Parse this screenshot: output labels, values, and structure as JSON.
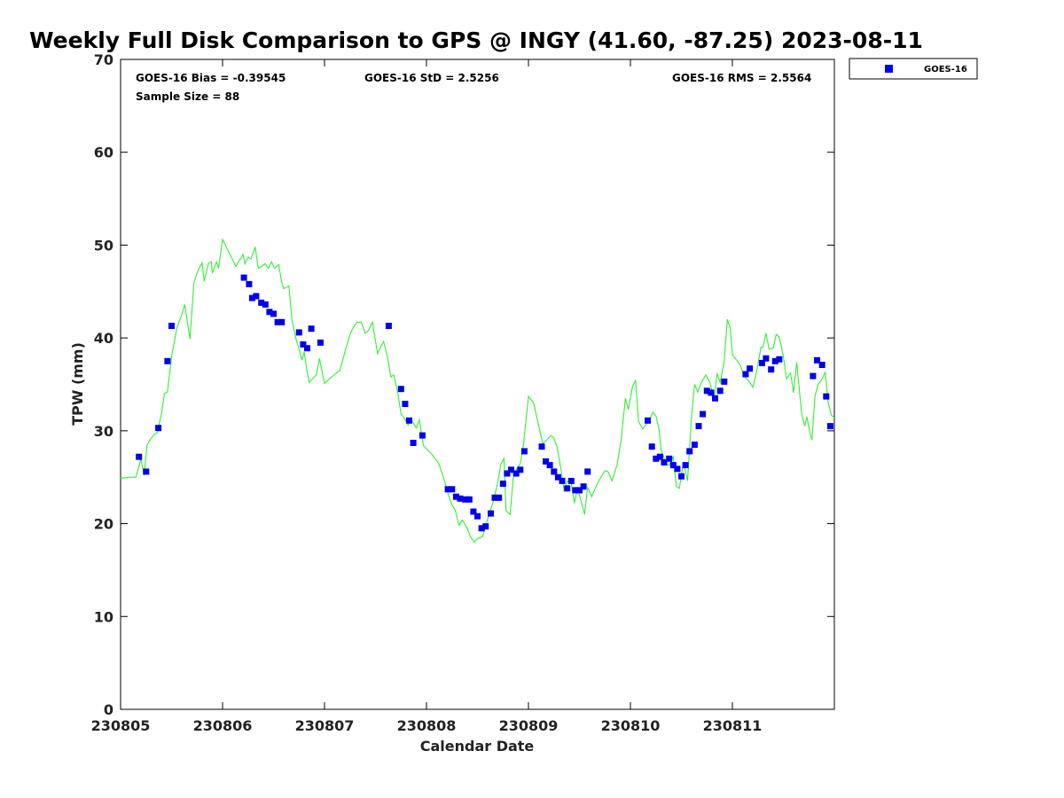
{
  "chart_data": {
    "type": "scatter",
    "title": "Weekly Full Disk Comparison to GPS @ INGY (41.60, -87.25) 2023-08-11",
    "xlabel": "Calendar Date",
    "ylabel": "TPW (mm)",
    "x_ticks": [
      "230805",
      "230806",
      "230807",
      "230808",
      "230809",
      "230810",
      "230811"
    ],
    "xlim_days": [
      0,
      7
    ],
    "ylim": [
      0,
      70
    ],
    "y_ticks": [
      0,
      10,
      20,
      30,
      40,
      50,
      60,
      70
    ],
    "grid": false,
    "legend": {
      "position": "outside-top-right",
      "entries": [
        "GOES-16"
      ]
    },
    "stats": {
      "bias": "GOES-16 Bias = -0.39545",
      "std": "GOES-16 StD = 2.5256",
      "rms": "GOES-16 RMS = 2.5564",
      "sample": "Sample Size = 88"
    },
    "colors": {
      "goes": "#0000ee",
      "gps": "#33ee33"
    },
    "series": [
      {
        "name": "GOES-16",
        "kind": "markers",
        "points": [
          [
            0.18,
            27.2
          ],
          [
            0.25,
            25.6
          ],
          [
            0.37,
            30.3
          ],
          [
            0.46,
            37.5
          ],
          [
            0.5,
            41.3
          ],
          [
            1.21,
            46.5
          ],
          [
            1.26,
            45.8
          ],
          [
            1.29,
            44.3
          ],
          [
            1.33,
            44.5
          ],
          [
            1.38,
            43.8
          ],
          [
            1.42,
            43.6
          ],
          [
            1.46,
            42.8
          ],
          [
            1.5,
            42.6
          ],
          [
            1.54,
            41.7
          ],
          [
            1.58,
            41.7
          ],
          [
            1.75,
            40.6
          ],
          [
            1.79,
            39.3
          ],
          [
            1.83,
            38.9
          ],
          [
            1.87,
            41.0
          ],
          [
            1.96,
            39.5
          ],
          [
            2.63,
            41.3
          ],
          [
            2.75,
            34.5
          ],
          [
            2.79,
            32.9
          ],
          [
            2.83,
            31.1
          ],
          [
            2.87,
            28.7
          ],
          [
            2.96,
            29.5
          ],
          [
            3.21,
            23.7
          ],
          [
            3.25,
            23.7
          ],
          [
            3.29,
            22.9
          ],
          [
            3.33,
            22.7
          ],
          [
            3.38,
            22.6
          ],
          [
            3.42,
            22.6
          ],
          [
            3.46,
            21.3
          ],
          [
            3.5,
            20.8
          ],
          [
            3.54,
            19.5
          ],
          [
            3.58,
            19.7
          ],
          [
            3.63,
            21.1
          ],
          [
            3.67,
            22.8
          ],
          [
            3.71,
            22.8
          ],
          [
            3.75,
            24.3
          ],
          [
            3.79,
            25.4
          ],
          [
            3.83,
            25.8
          ],
          [
            3.88,
            25.4
          ],
          [
            3.92,
            25.8
          ],
          [
            3.96,
            27.8
          ],
          [
            4.13,
            28.3
          ],
          [
            4.17,
            26.7
          ],
          [
            4.21,
            26.3
          ],
          [
            4.25,
            25.6
          ],
          [
            4.29,
            25.0
          ],
          [
            4.33,
            24.6
          ],
          [
            4.38,
            23.8
          ],
          [
            4.42,
            24.6
          ],
          [
            4.46,
            23.6
          ],
          [
            4.5,
            23.6
          ],
          [
            4.54,
            24.0
          ],
          [
            4.58,
            25.6
          ],
          [
            5.17,
            31.1
          ],
          [
            5.21,
            28.3
          ],
          [
            5.25,
            27.0
          ],
          [
            5.29,
            27.2
          ],
          [
            5.33,
            26.6
          ],
          [
            5.38,
            27.0
          ],
          [
            5.42,
            26.3
          ],
          [
            5.46,
            25.9
          ],
          [
            5.5,
            25.1
          ],
          [
            5.54,
            26.3
          ],
          [
            5.58,
            27.8
          ],
          [
            5.63,
            28.5
          ],
          [
            5.67,
            30.5
          ],
          [
            5.71,
            31.8
          ],
          [
            5.75,
            34.3
          ],
          [
            5.79,
            34.1
          ],
          [
            5.83,
            33.5
          ],
          [
            5.88,
            34.3
          ],
          [
            5.92,
            35.3
          ],
          [
            6.13,
            36.1
          ],
          [
            6.17,
            36.7
          ],
          [
            6.29,
            37.3
          ],
          [
            6.33,
            37.8
          ],
          [
            6.38,
            36.6
          ],
          [
            6.42,
            37.5
          ],
          [
            6.46,
            37.7
          ],
          [
            6.79,
            35.9
          ],
          [
            6.83,
            37.6
          ],
          [
            6.88,
            37.1
          ],
          [
            6.92,
            33.7
          ],
          [
            6.96,
            30.5
          ]
        ]
      },
      {
        "name": "GPS",
        "kind": "line",
        "points": [
          [
            0.0,
            24.9
          ],
          [
            0.1,
            25.0
          ],
          [
            0.15,
            25.0
          ],
          [
            0.2,
            27.0
          ],
          [
            0.23,
            25.2
          ],
          [
            0.26,
            28.5
          ],
          [
            0.3,
            29.2
          ],
          [
            0.33,
            29.6
          ],
          [
            0.36,
            29.8
          ],
          [
            0.4,
            31.8
          ],
          [
            0.43,
            34.0
          ],
          [
            0.46,
            34.2
          ],
          [
            0.5,
            38.0
          ],
          [
            0.55,
            41.0
          ],
          [
            0.6,
            42.5
          ],
          [
            0.63,
            43.6
          ],
          [
            0.68,
            39.9
          ],
          [
            0.72,
            46.0
          ],
          [
            0.76,
            47.3
          ],
          [
            0.8,
            48.1
          ],
          [
            0.82,
            46.1
          ],
          [
            0.86,
            48.0
          ],
          [
            0.89,
            48.2
          ],
          [
            0.9,
            47.0
          ],
          [
            0.94,
            48.2
          ],
          [
            0.96,
            47.5
          ],
          [
            1.0,
            50.6
          ],
          [
            1.05,
            49.5
          ],
          [
            1.1,
            48.4
          ],
          [
            1.13,
            47.7
          ],
          [
            1.18,
            48.6
          ],
          [
            1.2,
            49.0
          ],
          [
            1.22,
            48.0
          ],
          [
            1.25,
            48.7
          ],
          [
            1.28,
            48.5
          ],
          [
            1.32,
            49.8
          ],
          [
            1.35,
            47.5
          ],
          [
            1.38,
            47.7
          ],
          [
            1.42,
            48.0
          ],
          [
            1.45,
            47.5
          ],
          [
            1.48,
            48.2
          ],
          [
            1.51,
            47.5
          ],
          [
            1.55,
            47.9
          ],
          [
            1.58,
            46.0
          ],
          [
            1.6,
            45.3
          ],
          [
            1.65,
            45.6
          ],
          [
            1.68,
            42.0
          ],
          [
            1.72,
            39.9
          ],
          [
            1.75,
            38.8
          ],
          [
            1.78,
            37.6
          ],
          [
            1.8,
            38.5
          ],
          [
            1.83,
            36.3
          ],
          [
            1.85,
            35.2
          ],
          [
            1.88,
            35.6
          ],
          [
            1.92,
            36.0
          ],
          [
            1.95,
            37.8
          ],
          [
            2.0,
            35.1
          ],
          [
            2.05,
            35.6
          ],
          [
            2.1,
            36.1
          ],
          [
            2.15,
            36.5
          ],
          [
            2.2,
            38.5
          ],
          [
            2.25,
            40.4
          ],
          [
            2.28,
            41.1
          ],
          [
            2.32,
            41.7
          ],
          [
            2.36,
            41.7
          ],
          [
            2.4,
            40.5
          ],
          [
            2.43,
            40.8
          ],
          [
            2.47,
            41.7
          ],
          [
            2.52,
            38.3
          ],
          [
            2.55,
            39.0
          ],
          [
            2.58,
            39.6
          ],
          [
            2.62,
            37.8
          ],
          [
            2.65,
            35.8
          ],
          [
            2.68,
            36.0
          ],
          [
            2.72,
            34.0
          ],
          [
            2.75,
            31.8
          ],
          [
            2.78,
            31.4
          ],
          [
            2.82,
            30.6
          ],
          [
            2.85,
            31.2
          ],
          [
            2.9,
            30.3
          ],
          [
            2.93,
            31.2
          ],
          [
            2.97,
            28.4
          ],
          [
            3.05,
            27.5
          ],
          [
            3.12,
            26.5
          ],
          [
            3.18,
            24.5
          ],
          [
            3.22,
            22.9
          ],
          [
            3.25,
            22.0
          ],
          [
            3.28,
            21.5
          ],
          [
            3.32,
            19.8
          ],
          [
            3.35,
            20.4
          ],
          [
            3.4,
            19.5
          ],
          [
            3.43,
            18.6
          ],
          [
            3.47,
            18.0
          ],
          [
            3.5,
            18.4
          ],
          [
            3.55,
            18.6
          ],
          [
            3.6,
            20.5
          ],
          [
            3.65,
            22.2
          ],
          [
            3.7,
            24.5
          ],
          [
            3.73,
            26.4
          ],
          [
            3.76,
            27.0
          ],
          [
            3.78,
            21.4
          ],
          [
            3.82,
            21.0
          ],
          [
            3.85,
            24.9
          ],
          [
            3.88,
            25.8
          ],
          [
            3.92,
            26.5
          ],
          [
            3.95,
            28.4
          ],
          [
            4.0,
            33.7
          ],
          [
            4.05,
            33.0
          ],
          [
            4.1,
            30.6
          ],
          [
            4.14,
            28.6
          ],
          [
            4.18,
            29.0
          ],
          [
            4.22,
            29.5
          ],
          [
            4.25,
            29.2
          ],
          [
            4.28,
            28.3
          ],
          [
            4.32,
            25.8
          ],
          [
            4.35,
            23.5
          ],
          [
            4.38,
            24.6
          ],
          [
            4.42,
            24.3
          ],
          [
            4.45,
            22.2
          ],
          [
            4.48,
            23.8
          ],
          [
            4.52,
            22.3
          ],
          [
            4.55,
            21.0
          ],
          [
            4.58,
            23.9
          ],
          [
            4.62,
            22.9
          ],
          [
            4.65,
            23.7
          ],
          [
            4.7,
            24.8
          ],
          [
            4.75,
            25.7
          ],
          [
            4.78,
            25.6
          ],
          [
            4.82,
            24.6
          ],
          [
            4.87,
            26.4
          ],
          [
            4.91,
            29.1
          ],
          [
            4.95,
            33.5
          ],
          [
            4.98,
            32.3
          ],
          [
            5.02,
            34.8
          ],
          [
            5.05,
            35.4
          ],
          [
            5.08,
            31.0
          ],
          [
            5.12,
            30.2
          ],
          [
            5.18,
            31.0
          ],
          [
            5.22,
            32.0
          ],
          [
            5.25,
            31.6
          ],
          [
            5.28,
            30.2
          ],
          [
            5.3,
            28.0
          ],
          [
            5.32,
            27.4
          ],
          [
            5.35,
            26.4
          ],
          [
            5.38,
            26.3
          ],
          [
            5.42,
            27.2
          ],
          [
            5.45,
            24.0
          ],
          [
            5.48,
            23.8
          ],
          [
            5.52,
            26.6
          ],
          [
            5.56,
            24.6
          ],
          [
            5.6,
            31.7
          ],
          [
            5.63,
            35.0
          ],
          [
            5.66,
            34.2
          ],
          [
            5.7,
            35.3
          ],
          [
            5.74,
            36.0
          ],
          [
            5.78,
            35.2
          ],
          [
            5.82,
            33.4
          ],
          [
            5.85,
            36.2
          ],
          [
            5.88,
            35.2
          ],
          [
            5.92,
            37.5
          ],
          [
            5.95,
            42.0
          ],
          [
            5.98,
            41.0
          ],
          [
            6.0,
            38.2
          ],
          [
            6.05,
            37.5
          ],
          [
            6.08,
            37.0
          ],
          [
            6.12,
            35.8
          ],
          [
            6.16,
            35.4
          ],
          [
            6.2,
            34.7
          ],
          [
            6.24,
            36.5
          ],
          [
            6.28,
            39.0
          ],
          [
            6.3,
            39.0
          ],
          [
            6.33,
            40.5
          ],
          [
            6.36,
            38.8
          ],
          [
            6.4,
            38.9
          ],
          [
            6.43,
            40.4
          ],
          [
            6.46,
            40.1
          ],
          [
            6.5,
            38.0
          ],
          [
            6.53,
            35.6
          ],
          [
            6.57,
            36.2
          ],
          [
            6.6,
            34.1
          ],
          [
            6.63,
            37.4
          ],
          [
            6.66,
            34.0
          ],
          [
            6.68,
            31.8
          ],
          [
            6.71,
            30.5
          ],
          [
            6.73,
            31.5
          ],
          [
            6.76,
            29.8
          ],
          [
            6.78,
            29.0
          ],
          [
            6.81,
            33.7
          ],
          [
            6.84,
            35.0
          ],
          [
            6.87,
            35.4
          ],
          [
            6.91,
            36.3
          ],
          [
            6.94,
            33.0
          ],
          [
            6.97,
            31.7
          ],
          [
            7.0,
            31.4
          ]
        ]
      }
    ]
  }
}
